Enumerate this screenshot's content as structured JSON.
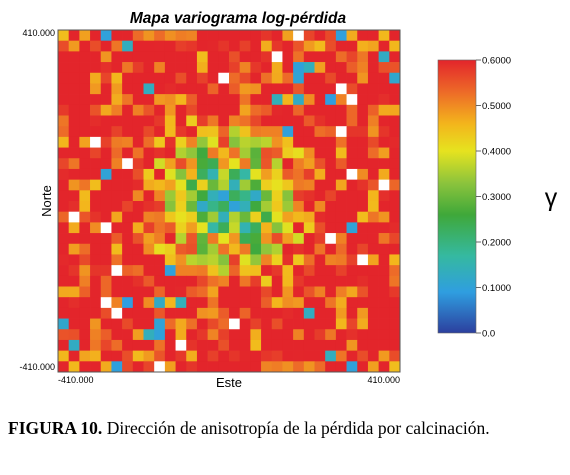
{
  "chart_data": {
    "type": "heatmap",
    "title": "Mapa variograma log-pérdida",
    "xlabel": "Este",
    "ylabel": "Norte",
    "x_ticks": [
      "-410.000",
      "410.000"
    ],
    "y_ticks": [
      "410.000",
      "-410.000"
    ],
    "xlim": [
      -410000,
      410000
    ],
    "ylim": [
      -410000,
      410000
    ],
    "grid_cells": 32,
    "colorbar": {
      "label": "γ",
      "range": [
        0.0,
        0.6
      ],
      "ticks": [
        "0.6000",
        "0.5000",
        "0.4000",
        "0.3000",
        "0.2000",
        "0.1000",
        "0.0"
      ],
      "tick_values": [
        0.6,
        0.5,
        0.4,
        0.3,
        0.2,
        0.1,
        0.0
      ],
      "colormap": [
        {
          "v": 0.0,
          "color": "#2c3f9e"
        },
        {
          "v": 0.09,
          "color": "#2f9ee0"
        },
        {
          "v": 0.17,
          "color": "#35b9a0"
        },
        {
          "v": 0.26,
          "color": "#3fa83a"
        },
        {
          "v": 0.33,
          "color": "#8cc43c"
        },
        {
          "v": 0.4,
          "color": "#e6e31f"
        },
        {
          "v": 0.46,
          "color": "#f3b51c"
        },
        {
          "v": 0.53,
          "color": "#ed6a28"
        },
        {
          "v": 0.6,
          "color": "#e3252b"
        }
      ]
    },
    "description": "Mapa de variograma simétrico: valores bajos de γ (azul/verde) cerca del centro, aumentando hacia rojo (~0.6) en los bordes"
  },
  "caption": {
    "label": "FIGURA 10.",
    "text": " Dirección de anisotropía de la pérdida por calcinación."
  }
}
